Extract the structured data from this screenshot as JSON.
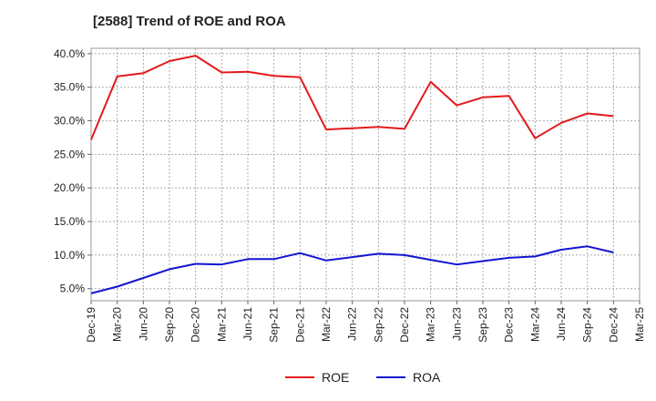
{
  "chart_data": {
    "type": "line",
    "title": "[2588]  Trend of ROE and ROA",
    "xlabel": "",
    "ylabel": "",
    "x": [
      "Dec-19",
      "Mar-20",
      "Jun-20",
      "Sep-20",
      "Dec-20",
      "Mar-21",
      "Jun-21",
      "Sep-21",
      "Dec-21",
      "Mar-22",
      "Jun-22",
      "Sep-22",
      "Dec-22",
      "Mar-23",
      "Jun-23",
      "Sep-23",
      "Dec-23",
      "Mar-24",
      "Jun-24",
      "Sep-24",
      "Dec-24",
      "Mar-25"
    ],
    "y_ticks": [
      "5.0%",
      "10.0%",
      "15.0%",
      "20.0%",
      "25.0%",
      "30.0%",
      "35.0%",
      "40.0%"
    ],
    "y_tick_values": [
      5,
      10,
      15,
      20,
      25,
      30,
      35,
      40
    ],
    "ylim": [
      3.2,
      40.8
    ],
    "grid": true,
    "legend": "bottom-center",
    "series": [
      {
        "name": "ROE",
        "color": "#e31a1c",
        "values": [
          27.2,
          36.6,
          37.1,
          38.9,
          39.7,
          37.2,
          37.3,
          36.7,
          36.5,
          28.7,
          28.9,
          29.1,
          28.8,
          35.8,
          32.3,
          33.5,
          33.7,
          27.4,
          29.7,
          31.1,
          30.7,
          null
        ]
      },
      {
        "name": "ROA",
        "color": "#1414d2",
        "values": [
          4.3,
          5.3,
          6.6,
          7.9,
          8.7,
          8.6,
          9.4,
          9.4,
          10.3,
          9.2,
          9.7,
          10.2,
          10.0,
          9.3,
          8.6,
          9.1,
          9.6,
          9.8,
          10.8,
          11.3,
          10.4,
          null
        ]
      }
    ]
  }
}
